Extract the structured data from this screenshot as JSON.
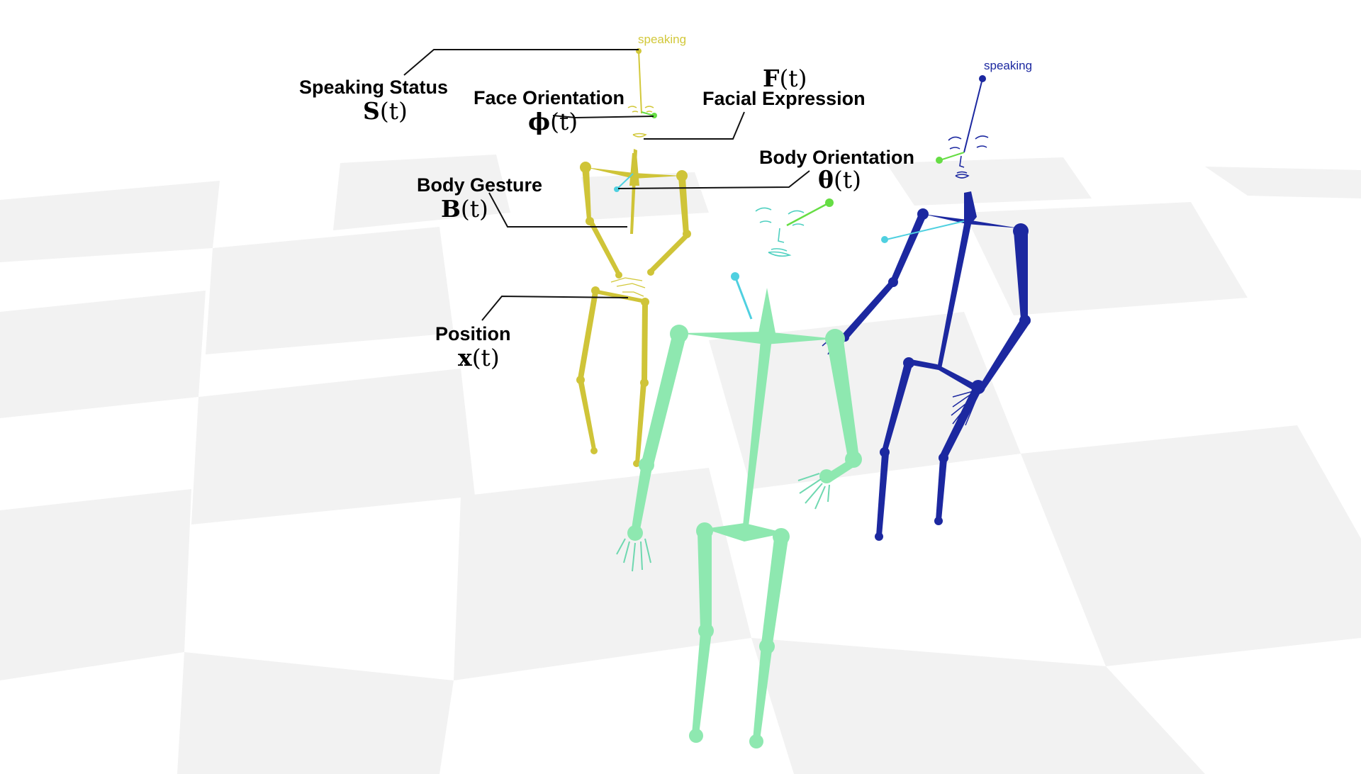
{
  "colors": {
    "floor_light": "#f2f2f2",
    "floor_white": "#ffffff",
    "yellow_figure": "#d2c83a",
    "green_figure": "#8ee8b0",
    "blue_figure": "#1c28a0",
    "orientation_marker": "#4fd0e0",
    "face_marker": "#66dd44"
  },
  "figures": {
    "yellow": {
      "status": "speaking"
    },
    "blue": {
      "status": "speaking"
    },
    "green": {
      "status": ""
    }
  },
  "annotations": {
    "speaking_status": {
      "label": "Speaking Status",
      "symbol_bold": "S",
      "symbol_arg": "(t)"
    },
    "face_orientation": {
      "label": "Face Orientation",
      "symbol_bold": "ϕ",
      "symbol_arg": "(t)"
    },
    "facial_expression": {
      "label": "Facial Expression",
      "symbol_bold": "F",
      "symbol_arg": "(t)"
    },
    "body_orientation": {
      "label": "Body Orientation",
      "symbol_bold": "θ",
      "symbol_arg": "(t)"
    },
    "body_gesture": {
      "label": "Body Gesture",
      "symbol_bold": "B",
      "symbol_arg": "(t)"
    },
    "position": {
      "label": "Position",
      "symbol_bold": "x",
      "symbol_arg": "(t)"
    }
  }
}
